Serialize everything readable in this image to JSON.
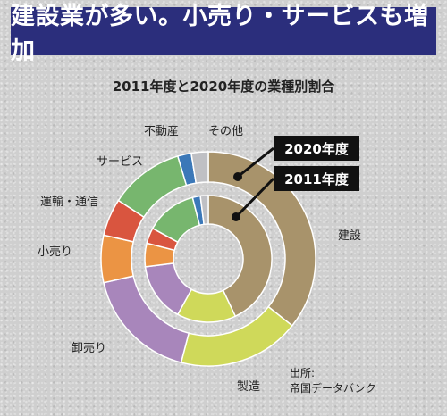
{
  "banner": {
    "text": "建設業が多い。小売り・サービスも増加",
    "bg_color": "#2b2e7c"
  },
  "source": {
    "label": "出所:",
    "name": "帝国データバンク"
  },
  "chart_data": {
    "type": "pie",
    "style": "nested-donut",
    "title": "2011年度と2020年度の業種別割合",
    "categories": [
      "建設",
      "製造",
      "卸売り",
      "小売り",
      "運輸・通信",
      "サービス",
      "不動産",
      "その他"
    ],
    "colors": [
      "#a8936b",
      "#cfd95a",
      "#a886bb",
      "#eb9444",
      "#d9553f",
      "#77b66e",
      "#3b78b8",
      "#bfc0c4"
    ],
    "series": [
      {
        "name": "2020年度",
        "ring": "outer",
        "values": [
          35,
          18,
          17,
          7,
          5.5,
          11,
          2,
          2.5
        ]
      },
      {
        "name": "2011年度",
        "ring": "inner",
        "values": [
          43,
          15,
          15,
          6,
          4,
          13,
          2,
          2
        ]
      }
    ]
  }
}
